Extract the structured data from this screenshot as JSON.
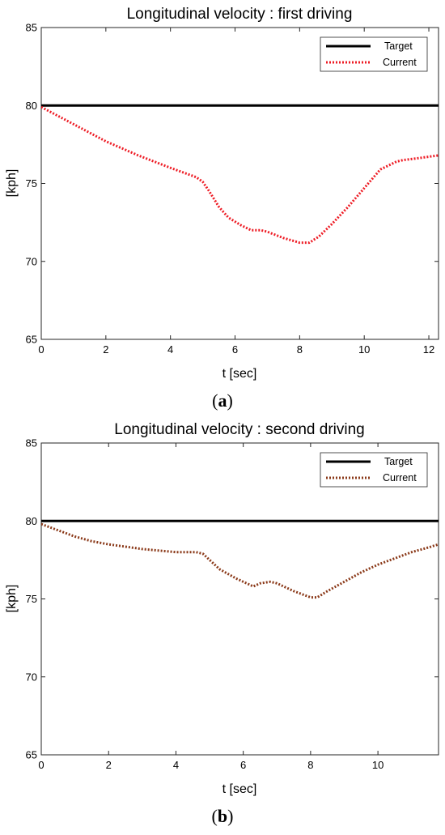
{
  "chart_data": [
    {
      "type": "line",
      "title": "Longitudinal velocity : first driving",
      "xlabel": "t [sec]",
      "ylabel": "[kph]",
      "xlim": [
        0,
        12.3
      ],
      "ylim": [
        65,
        85
      ],
      "xticks": [
        0,
        2,
        4,
        6,
        8,
        10,
        12
      ],
      "yticks": [
        65,
        70,
        75,
        80,
        85
      ],
      "grid": false,
      "legend_position": "top-right",
      "caption_letter": "a",
      "series": [
        {
          "name": "Target",
          "color": "#000000",
          "style": "solid",
          "x": [
            0,
            12.3
          ],
          "values": [
            80,
            80
          ]
        },
        {
          "name": "Current",
          "color": "#ee1c25",
          "style": "dotted",
          "x": [
            0,
            1,
            2,
            3,
            4,
            4.8,
            5.0,
            5.2,
            5.5,
            5.8,
            6.2,
            6.5,
            6.8,
            7.0,
            7.5,
            8.0,
            8.3,
            8.6,
            9.0,
            9.5,
            10.0,
            10.5,
            11.0,
            11.2,
            11.6,
            12.3
          ],
          "values": [
            79.9,
            78.8,
            77.7,
            76.8,
            76.0,
            75.4,
            75.1,
            74.5,
            73.5,
            72.8,
            72.3,
            72.0,
            72.0,
            71.9,
            71.5,
            71.2,
            71.2,
            71.6,
            72.4,
            73.5,
            74.7,
            75.9,
            76.4,
            76.5,
            76.6,
            76.8
          ]
        }
      ]
    },
    {
      "type": "line",
      "title": "Longitudinal velocity : second driving",
      "xlabel": "t [sec]",
      "ylabel": "[kph]",
      "xlim": [
        0,
        11.8
      ],
      "ylim": [
        65,
        85
      ],
      "xticks": [
        0,
        2,
        4,
        6,
        8,
        10
      ],
      "yticks": [
        65,
        70,
        75,
        80,
        85
      ],
      "grid": false,
      "legend_position": "top-right",
      "caption_letter": "b",
      "series": [
        {
          "name": "Target",
          "color": "#000000",
          "style": "solid",
          "x": [
            0,
            11.8
          ],
          "values": [
            80,
            80
          ]
        },
        {
          "name": "Current",
          "color": "#8b3a1a",
          "style": "dotted",
          "x": [
            0,
            0.5,
            1,
            1.5,
            2,
            3,
            4,
            4.6,
            4.8,
            5.0,
            5.3,
            5.8,
            6.3,
            6.5,
            6.8,
            7.0,
            7.5,
            8.0,
            8.2,
            8.5,
            9.0,
            9.5,
            10.0,
            10.5,
            11.0,
            11.5,
            11.8
          ],
          "values": [
            79.8,
            79.4,
            79.0,
            78.7,
            78.5,
            78.2,
            78.0,
            78.0,
            77.9,
            77.5,
            76.9,
            76.3,
            75.8,
            76.0,
            76.1,
            76.0,
            75.5,
            75.1,
            75.1,
            75.5,
            76.1,
            76.7,
            77.2,
            77.6,
            78.0,
            78.3,
            78.5
          ]
        }
      ]
    }
  ]
}
